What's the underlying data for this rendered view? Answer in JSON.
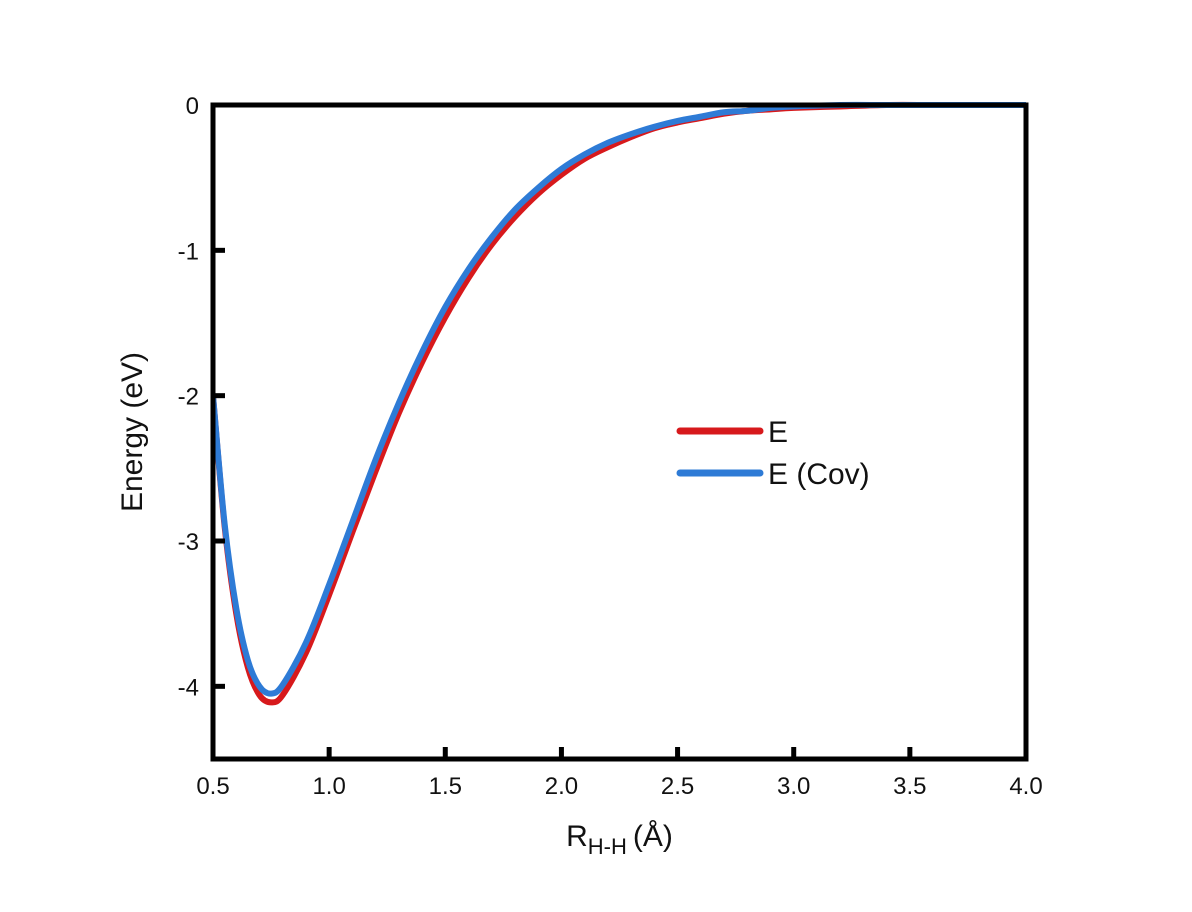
{
  "chart_data": {
    "type": "line",
    "title": "",
    "xlabel": {
      "main": "R",
      "sub": "H-H",
      "unit": "(Å)"
    },
    "ylabel": "Energy (eV)",
    "xlim": [
      0.5,
      4.0
    ],
    "ylim": [
      -4.5,
      0
    ],
    "xticks": [
      0.5,
      1.0,
      1.5,
      2.0,
      2.5,
      3.0,
      3.5,
      4.0
    ],
    "xtick_labels": [
      "0.5",
      "1.0",
      "1.5",
      "2.0",
      "2.5",
      "3.0",
      "3.5",
      "4.0"
    ],
    "yticks": [
      0,
      -1,
      -2,
      -3,
      -4
    ],
    "ytick_labels": [
      "0",
      "-1",
      "-2",
      "-3",
      "-4"
    ],
    "grid": false,
    "legend_position": "center-right",
    "x": [
      0.5,
      0.55,
      0.6,
      0.65,
      0.7,
      0.75,
      0.8,
      0.9,
      1.0,
      1.1,
      1.2,
      1.3,
      1.4,
      1.5,
      1.6,
      1.7,
      1.8,
      1.9,
      2.0,
      2.1,
      2.2,
      2.3,
      2.4,
      2.5,
      2.6,
      2.7,
      2.8,
      2.9,
      3.0,
      3.2,
      3.4,
      3.6,
      3.8,
      4.0
    ],
    "series": [
      {
        "name": "E",
        "color": "#d7191c",
        "values": [
          -2.0,
          -2.9,
          -3.5,
          -3.87,
          -4.06,
          -4.11,
          -4.06,
          -3.77,
          -3.37,
          -2.94,
          -2.52,
          -2.12,
          -1.77,
          -1.46,
          -1.19,
          -0.96,
          -0.77,
          -0.61,
          -0.48,
          -0.37,
          -0.29,
          -0.22,
          -0.16,
          -0.12,
          -0.09,
          -0.06,
          -0.04,
          -0.03,
          -0.02,
          -0.01,
          0.0,
          0.0,
          0.0,
          0.0
        ]
      },
      {
        "name": "E (Cov)",
        "color": "#2e7bd6",
        "values": [
          -2.0,
          -2.88,
          -3.46,
          -3.82,
          -4.0,
          -4.05,
          -3.99,
          -3.7,
          -3.3,
          -2.87,
          -2.44,
          -2.05,
          -1.7,
          -1.39,
          -1.13,
          -0.91,
          -0.72,
          -0.57,
          -0.44,
          -0.34,
          -0.26,
          -0.2,
          -0.15,
          -0.11,
          -0.08,
          -0.05,
          -0.04,
          -0.02,
          -0.01,
          0.0,
          0.0,
          0.0,
          0.0,
          0.0
        ]
      }
    ]
  }
}
